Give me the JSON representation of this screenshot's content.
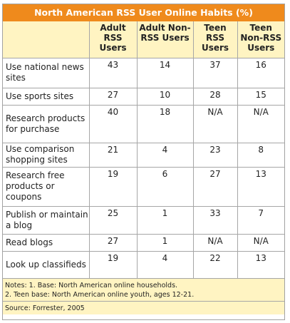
{
  "chart_data": {
    "type": "table",
    "title": "North American RSS User Online Habits (%)",
    "columns": [
      "Adult RSS Users",
      "Adult Non-RSS Users",
      "Teen RSS Users",
      "Teen Non-RSS Users"
    ],
    "rows": [
      {
        "label": "Use national news sites",
        "values": [
          "43",
          "14",
          "37",
          "16"
        ]
      },
      {
        "label": "Use sports sites",
        "values": [
          "27",
          "10",
          "28",
          "15"
        ]
      },
      {
        "label": "Research products for purchase",
        "values": [
          "40",
          "18",
          "N/A",
          "N/A"
        ]
      },
      {
        "label": "Use comparison shopping sites",
        "values": [
          "21",
          "4",
          "23",
          "8"
        ]
      },
      {
        "label": "Research free products or coupons",
        "values": [
          "19",
          "6",
          "27",
          "13"
        ]
      },
      {
        "label": "Publish or maintain a blog",
        "values": [
          "25",
          "1",
          "33",
          "7"
        ]
      },
      {
        "label": "Read blogs",
        "values": [
          "27",
          "1",
          "N/A",
          "N/A"
        ]
      },
      {
        "label": "Look up classifieds",
        "values": [
          "19",
          "4",
          "22",
          "13"
        ]
      }
    ],
    "notes": [
      "Notes: 1. Base: North American online households.",
      "2. Teen base: North American online youth, ages 12-21."
    ],
    "source": "Source: Forrester, 2005"
  },
  "colors": {
    "title_bg": "#ef8a1c",
    "header_bg": "#fff4c2",
    "border": "#a6a6a6"
  }
}
